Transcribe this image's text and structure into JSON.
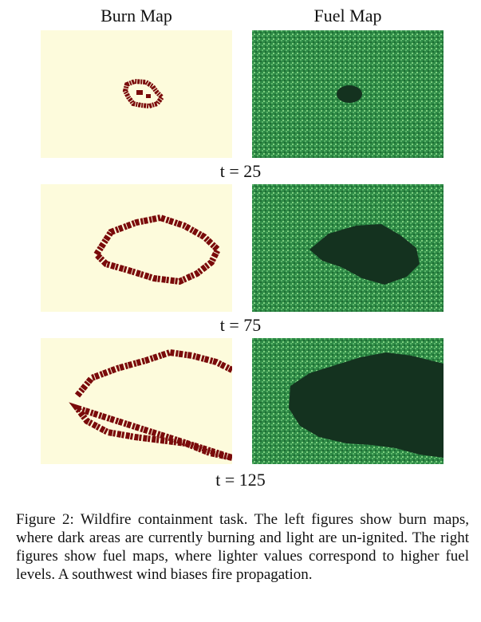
{
  "headers": {
    "burn": "Burn Map",
    "fuel": "Fuel Map"
  },
  "rows": [
    {
      "time_label": "t = 25"
    },
    {
      "time_label": "t = 75"
    },
    {
      "time_label": "t = 125"
    }
  ],
  "caption": "Figure 2: Wildfire containment task. The left figures show burn maps, where dark areas are currently burning and light are un-ignited. The right figures show fuel maps, where lighter values correspond to higher fuel levels. A southwest wind biases fire propagation.",
  "colors": {
    "burn_background": "#fdfbdc",
    "burning": "#7a0a0a",
    "fuel_background": "#2e8a46",
    "fuel_depleted": "#14321f"
  }
}
